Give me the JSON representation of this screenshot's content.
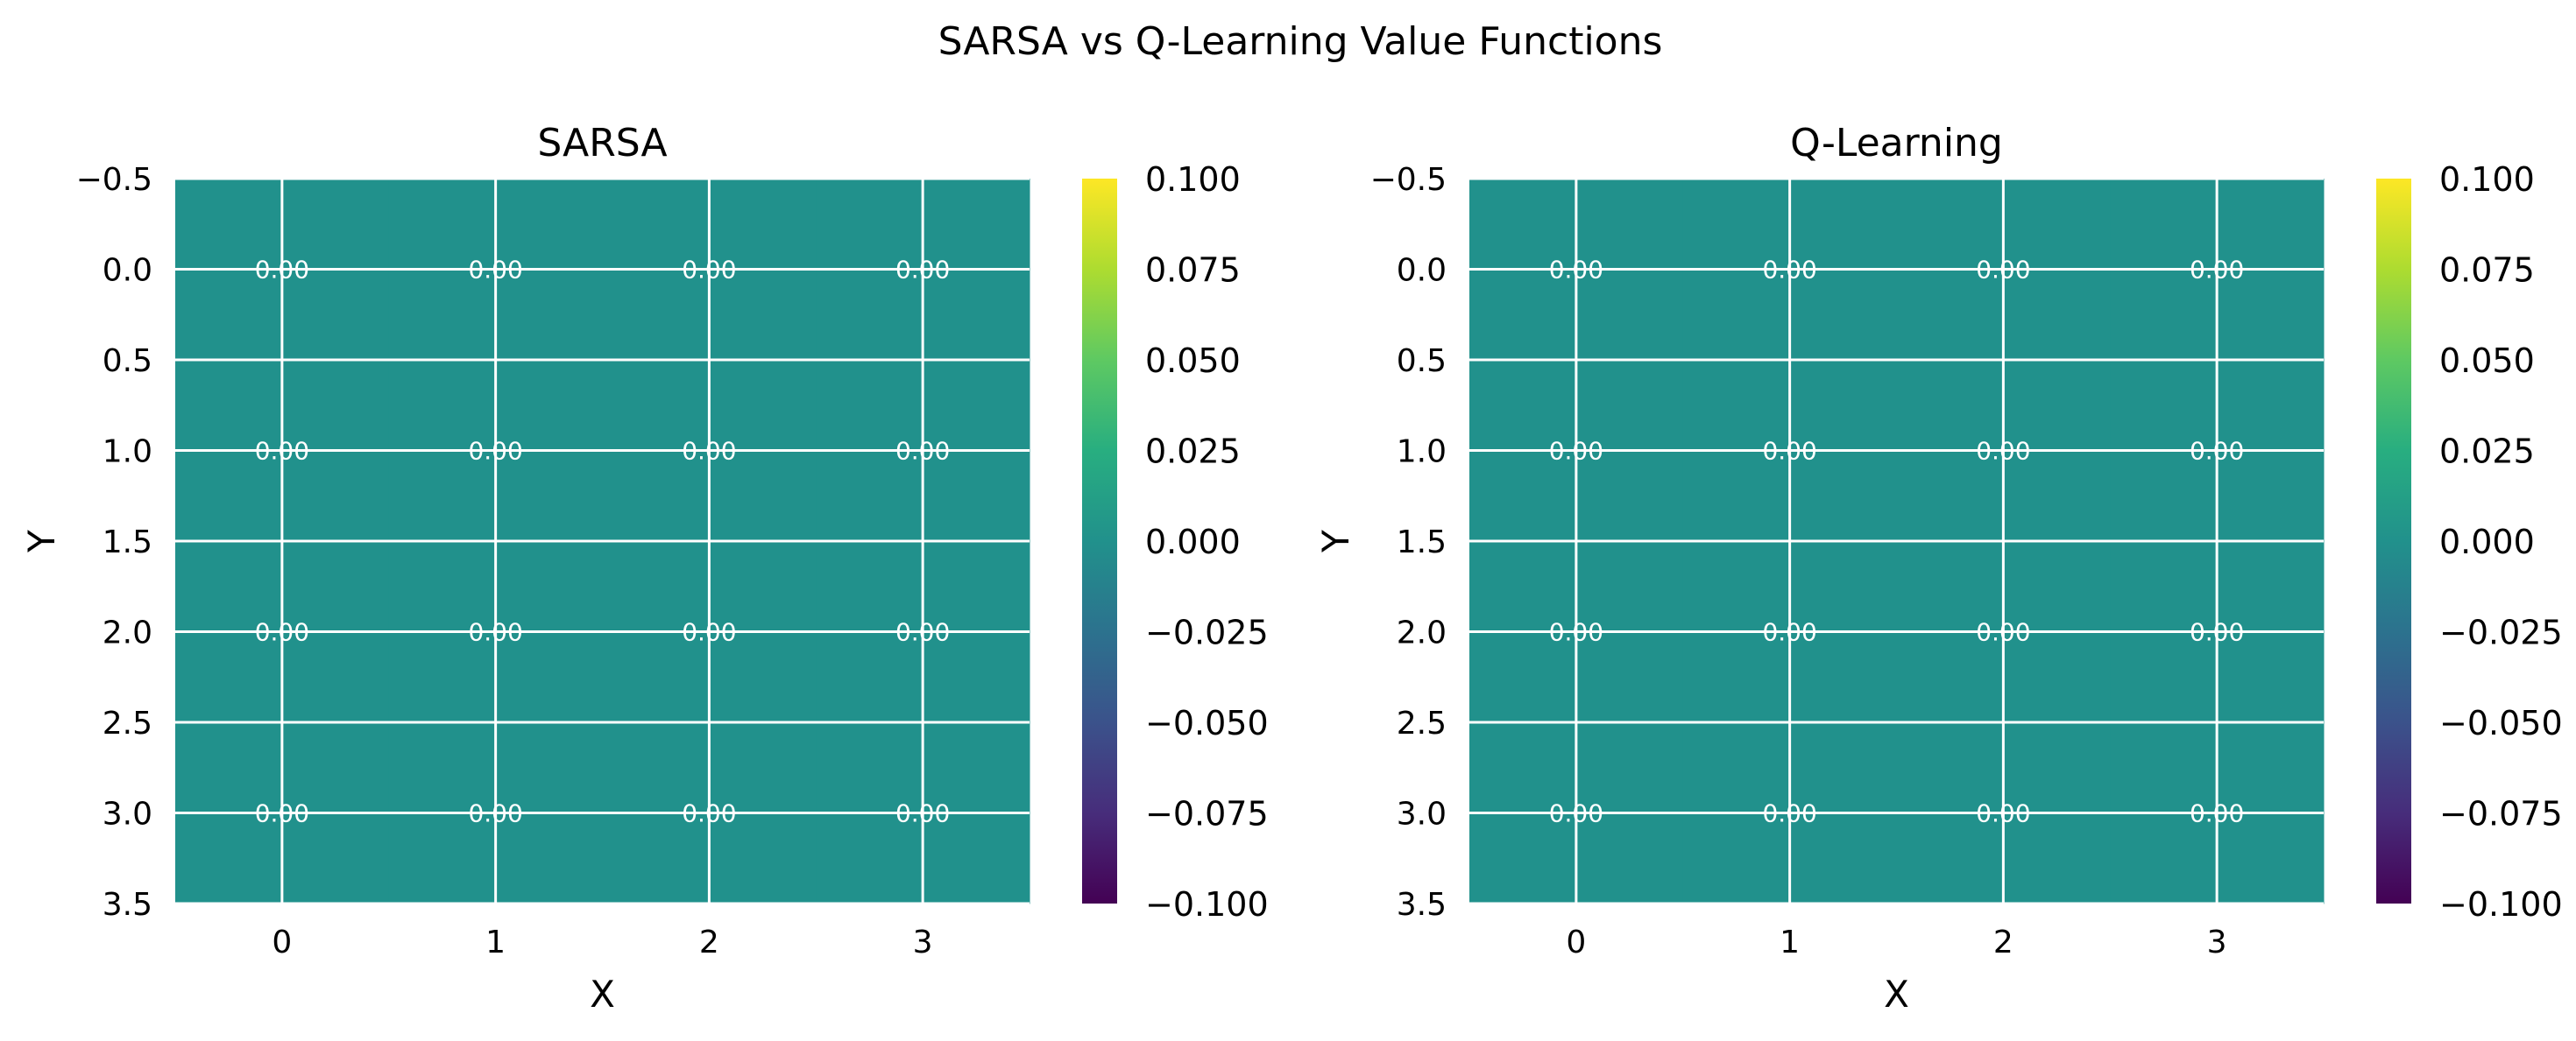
{
  "figure": {
    "title": "SARSA vs Q-Learning Value Functions"
  },
  "chart_data": [
    {
      "type": "heatmap",
      "title": "SARSA",
      "xlabel": "X",
      "ylabel": "Y",
      "x_ticks": [
        "0",
        "1",
        "2",
        "3"
      ],
      "y_ticks": [
        "−0.5",
        "0.0",
        "0.5",
        "1.0",
        "1.5",
        "2.0",
        "2.5",
        "3.0",
        "3.5"
      ],
      "xlim": [
        -0.5,
        3.5
      ],
      "ylim": [
        3.5,
        -0.5
      ],
      "grid": true,
      "values": [
        [
          0,
          0,
          0,
          0
        ],
        [
          0,
          0,
          0,
          0
        ],
        [
          0,
          0,
          0,
          0
        ],
        [
          0,
          0,
          0,
          0
        ]
      ],
      "annotations": [
        [
          "0.00",
          "0.00",
          "0.00",
          "0.00"
        ],
        [
          "0.00",
          "0.00",
          "0.00",
          "0.00"
        ],
        [
          "0.00",
          "0.00",
          "0.00",
          "0.00"
        ],
        [
          "0.00",
          "0.00",
          "0.00",
          "0.00"
        ]
      ],
      "colormap": "viridis",
      "colorbar": {
        "range": [
          -0.1,
          0.1
        ],
        "ticks": [
          "−0.100",
          "−0.075",
          "−0.050",
          "−0.025",
          "0.000",
          "0.025",
          "0.050",
          "0.075",
          "0.100"
        ]
      }
    },
    {
      "type": "heatmap",
      "title": "Q-Learning",
      "xlabel": "X",
      "ylabel": "Y",
      "x_ticks": [
        "0",
        "1",
        "2",
        "3"
      ],
      "y_ticks": [
        "−0.5",
        "0.0",
        "0.5",
        "1.0",
        "1.5",
        "2.0",
        "2.5",
        "3.0",
        "3.5"
      ],
      "xlim": [
        -0.5,
        3.5
      ],
      "ylim": [
        3.5,
        -0.5
      ],
      "grid": true,
      "values": [
        [
          0,
          0,
          0,
          0
        ],
        [
          0,
          0,
          0,
          0
        ],
        [
          0,
          0,
          0,
          0
        ],
        [
          0,
          0,
          0,
          0
        ]
      ],
      "annotations": [
        [
          "0.00",
          "0.00",
          "0.00",
          "0.00"
        ],
        [
          "0.00",
          "0.00",
          "0.00",
          "0.00"
        ],
        [
          "0.00",
          "0.00",
          "0.00",
          "0.00"
        ],
        [
          "0.00",
          "0.00",
          "0.00",
          "0.00"
        ]
      ],
      "colormap": "viridis",
      "colorbar": {
        "range": [
          -0.1,
          0.1
        ],
        "ticks": [
          "−0.100",
          "−0.075",
          "−0.050",
          "−0.025",
          "0.000",
          "0.025",
          "0.050",
          "0.075",
          "0.100"
        ]
      }
    }
  ]
}
